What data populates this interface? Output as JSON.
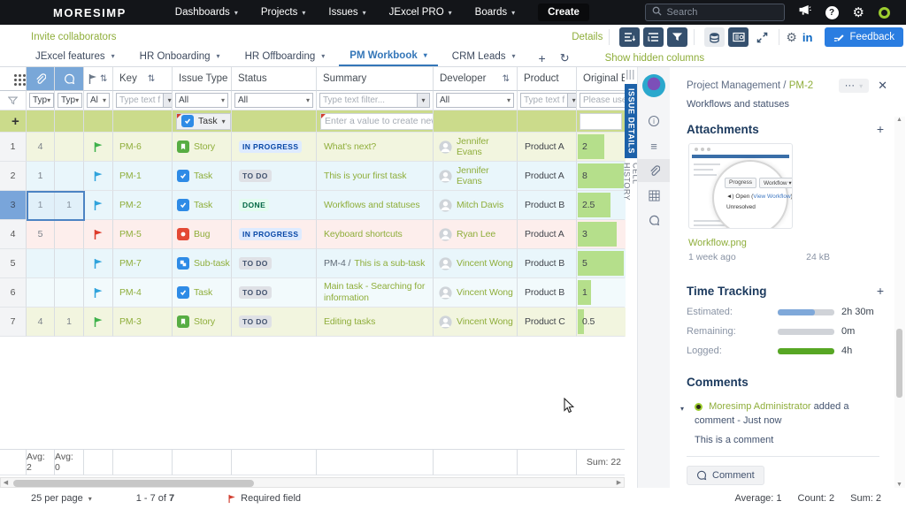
{
  "icons": {
    "chevron": "▾",
    "sort": "⇅",
    "plus": "+",
    "refresh": "↻",
    "gear": "⚙",
    "question": "?",
    "dots": "···",
    "close": "✕",
    "up": "▲",
    "down": "▼",
    "left": "◀",
    "right": "▶",
    "collapse": "▾"
  },
  "topnav": {
    "logo": "MORESIMP",
    "menu": [
      "Dashboards",
      "Projects",
      "Issues",
      "JExcel PRO",
      "Boards"
    ],
    "create_label": "Create",
    "search_placeholder": "Search"
  },
  "actionbar": {
    "invite_link": "Invite collaborators",
    "details_link": "Details",
    "linkedin_label": "in",
    "feedback_label": "Feedback"
  },
  "tabbar": {
    "tabs": [
      {
        "label": "JExcel features",
        "active": false
      },
      {
        "label": "HR Onboarding",
        "active": false
      },
      {
        "label": "HR Offboarding",
        "active": false
      },
      {
        "label": "PM Workbook",
        "active": true
      },
      {
        "label": "CRM Leads",
        "active": false
      }
    ],
    "show_hidden_link": "Show hidden columns"
  },
  "side_tabs": {
    "issue_details": "ISSUE DETAILS",
    "cell_history": "CELL HISTORY"
  },
  "table": {
    "headers": {
      "key": "Key",
      "issue_type": "Issue Type",
      "status": "Status",
      "summary": "Summary",
      "developer": "Developer",
      "product": "Product",
      "original_estimate": "Original E"
    },
    "filters": {
      "attachments": "Typ",
      "comments": "Typ",
      "flag": "Al",
      "key": "Type text f",
      "issue_type": "All",
      "status": "All",
      "summary": "Type text filter...",
      "developer": "All",
      "product": "Type text f",
      "original_estimate": "Please use"
    },
    "new_row": {
      "issue_type": "Task",
      "summary_placeholder": "Enter a value to create new"
    },
    "status_styles": {
      "IN PROGRESS": {
        "bg": "#deebff",
        "fg": "#0747a6"
      },
      "TO DO": {
        "bg": "#dfe1e6",
        "fg": "#42526e"
      },
      "DONE": {
        "bg": "#e3fcef",
        "fg": "#006644"
      }
    },
    "type_colors": {
      "Story": "#57ad43",
      "Task": "#2e8be6",
      "Bug": "#e34935",
      "Sub-task": "#2e8be6"
    },
    "flag_colors": {
      "green": "#3eb14b",
      "blue": "#2fa3dc",
      "red": "#dd3b2b"
    },
    "estimate_bar": {
      "color": "#b5df8b",
      "scale_max": 3.5
    },
    "rows": [
      {
        "num": "1",
        "attachments": "4",
        "comments": "",
        "flag": "green",
        "key": "PM-6",
        "type": "Story",
        "status": "IN PROGRESS",
        "summary_prefix": "",
        "summary": "What's next?",
        "developer": "Jennifer Evans",
        "product": "Product A",
        "estimate": 2,
        "selected": false,
        "row_color": "#f2f5df"
      },
      {
        "num": "2",
        "attachments": "1",
        "comments": "",
        "flag": "blue",
        "key": "PM-1",
        "type": "Task",
        "status": "TO DO",
        "summary_prefix": "",
        "summary": "This is your first task",
        "developer": "Jennifer Evans",
        "product": "Product A",
        "estimate": 8,
        "selected": false,
        "row_color": "#e9f6fb"
      },
      {
        "num": "3",
        "attachments": "1",
        "comments": "1",
        "flag": "blue",
        "key": "PM-2",
        "type": "Task",
        "status": "DONE",
        "summary_prefix": "",
        "summary": "Workflows and statuses",
        "developer": "Mitch Davis",
        "product": "Product B",
        "estimate": 2.5,
        "selected": true,
        "row_color": "#e9f6fb"
      },
      {
        "num": "4",
        "attachments": "5",
        "comments": "",
        "flag": "red",
        "key": "PM-5",
        "type": "Bug",
        "status": "IN PROGRESS",
        "summary_prefix": "",
        "summary": "Keyboard shortcuts",
        "developer": "Ryan Lee",
        "product": "Product A",
        "estimate": 3,
        "selected": false,
        "row_color": "#fdeeec"
      },
      {
        "num": "5",
        "attachments": "",
        "comments": "",
        "flag": "blue",
        "key": "PM-7",
        "type": "Sub-task",
        "status": "TO DO",
        "summary_prefix": "PM-4 /",
        "summary": "This is a sub-task",
        "developer": "Vincent Wong",
        "product": "Product B",
        "estimate": 5,
        "selected": false,
        "row_color": "#e9f6fb"
      },
      {
        "num": "6",
        "attachments": "",
        "comments": "",
        "flag": "blue",
        "key": "PM-4",
        "type": "Task",
        "status": "TO DO",
        "summary_prefix": "",
        "summary": "Main task - Searching for information",
        "developer": "Vincent Wong",
        "product": "Product B",
        "estimate": 1,
        "selected": false,
        "row_color": "#f2fafc"
      },
      {
        "num": "7",
        "attachments": "4",
        "comments": "1",
        "flag": "green",
        "key": "PM-3",
        "type": "Story",
        "status": "TO DO",
        "summary_prefix": "",
        "summary": "Editing tasks",
        "developer": "Vincent Wong",
        "product": "Product C",
        "estimate": 0.5,
        "selected": false,
        "row_color": "#f2f5df"
      }
    ],
    "summary_row": {
      "attachments": "Avg: 2",
      "comments": "Avg: 0",
      "estimate": "Sum: 22"
    }
  },
  "panel": {
    "breadcrumb_project": "Project Management /",
    "breadcrumb_issue": "PM-2",
    "issue_title": "Workflows and statuses",
    "attachments": {
      "heading": "Attachments",
      "file_name": "Workflow.png",
      "file_age": "1 week ago",
      "file_size": "24 kB",
      "thumb_btn1": "Progress",
      "thumb_btn2": "Workflow ▾",
      "thumb_open_pre": "Open (",
      "thumb_open_link": "View Workflow",
      "thumb_open_post": ")",
      "thumb_status": "Unresolved"
    },
    "time_tracking": {
      "heading": "Time Tracking",
      "rows": [
        {
          "label": "Estimated:",
          "value": "2h 30m",
          "fill": 0.65,
          "color": "#7fa8d9"
        },
        {
          "label": "Remaining:",
          "value": "0m",
          "fill": 0,
          "color": "#9aa0a6"
        },
        {
          "label": "Logged:",
          "value": "4h",
          "fill": 1,
          "color": "#57a724"
        }
      ]
    },
    "comments": {
      "heading": "Comments",
      "author": "Moresimp Administrator",
      "action_text": "added a comment - Just now",
      "body": "This is a comment",
      "button_label": "Comment"
    }
  },
  "footer": {
    "per_page": "25 per page",
    "range": "1 - 7 of",
    "range_total": "7",
    "required": "Required field",
    "average": "Average: 1",
    "count": "Count: 2",
    "sum": "Sum: 2"
  }
}
